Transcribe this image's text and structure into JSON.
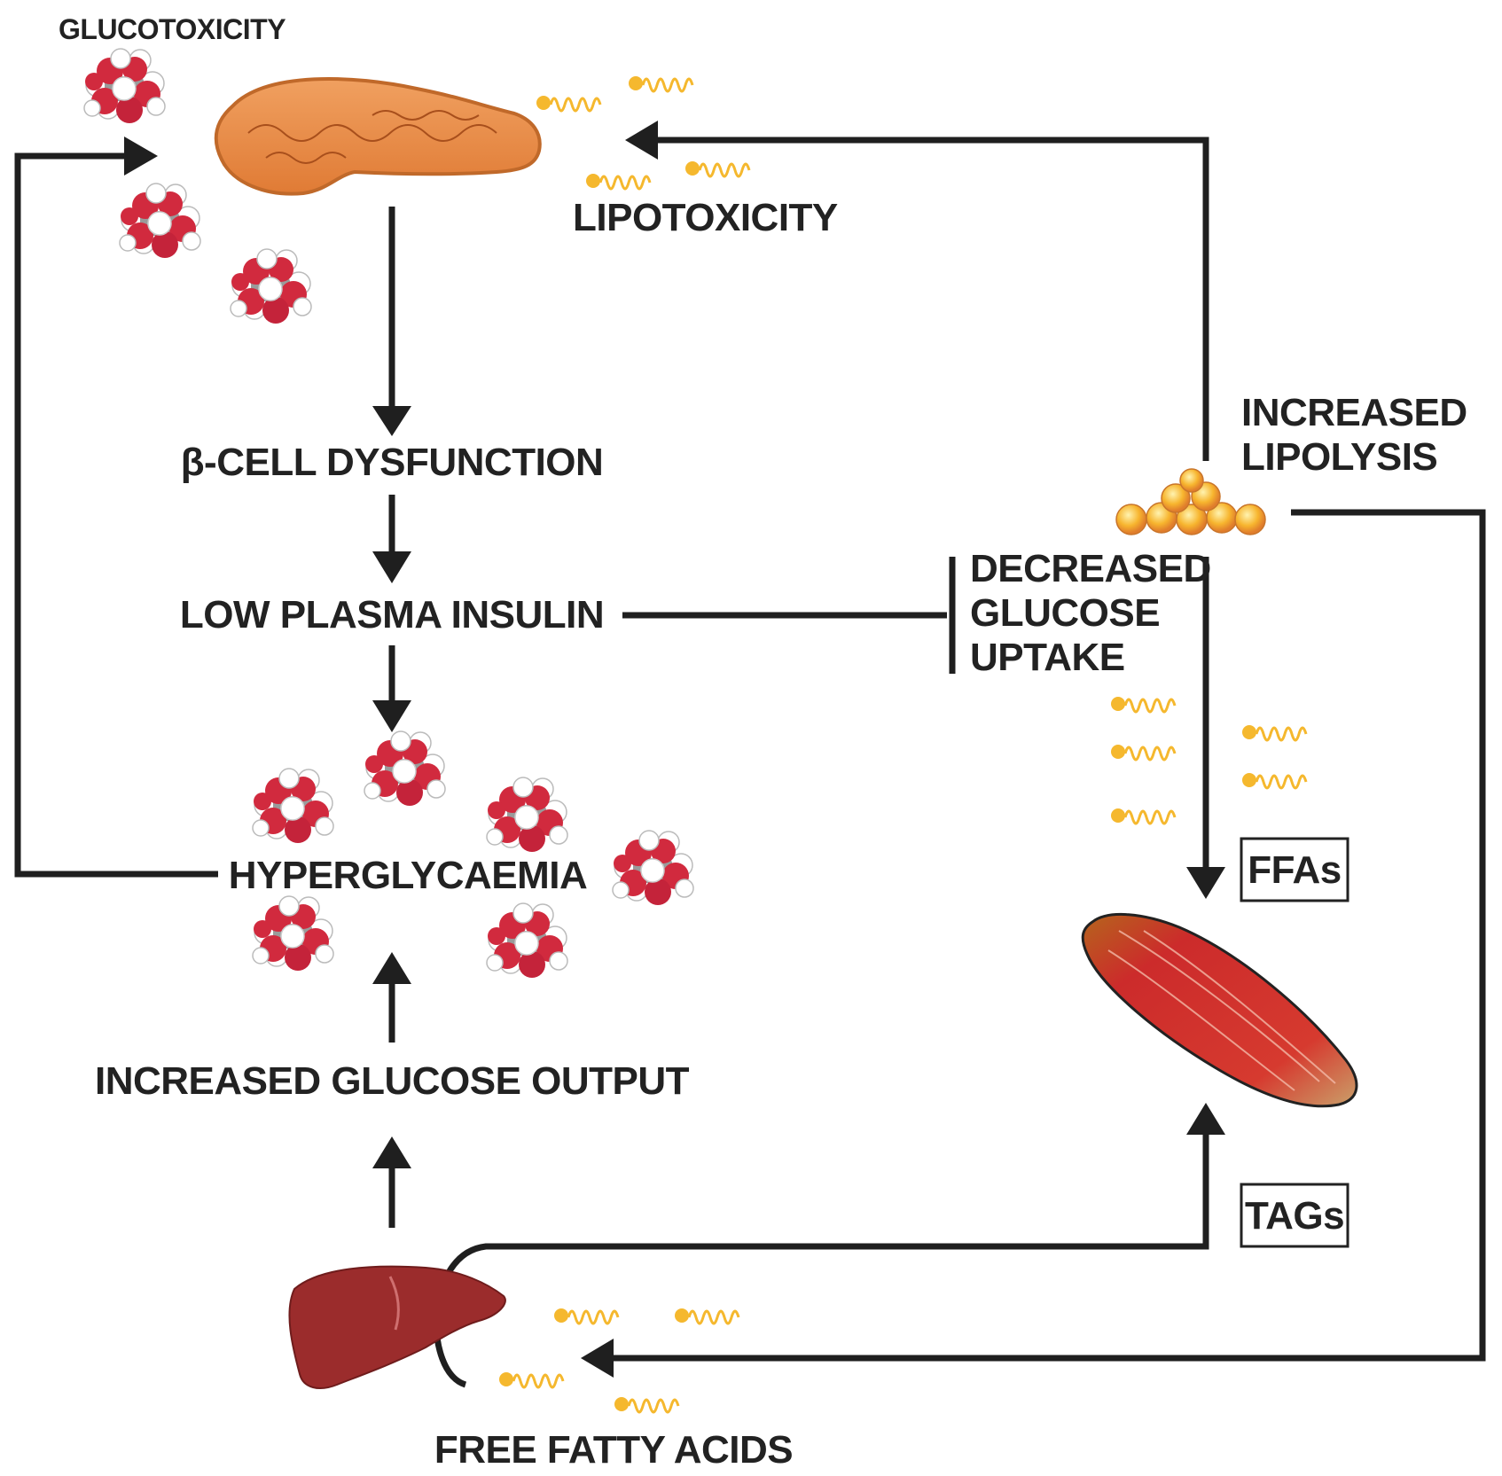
{
  "labels": {
    "glucotoxicity": "GLUCOTOXICITY",
    "lipotoxicity": "LIPOTOXICITY",
    "beta_cell": "β-CELL DYSFUNCTION",
    "low_insulin": "LOW PLASMA INSULIN",
    "hyperglycaemia": "HYPERGLYCAEMIA",
    "glucose_output": "INCREASED GLUCOSE OUTPUT",
    "free_fatty_acids": "FREE FATTY ACIDS",
    "lipolysis_line1": "INCREASED",
    "lipolysis_line2": "LIPOLYSIS",
    "uptake_line1": "DECREASED",
    "uptake_line2": "GLUCOSE",
    "uptake_line3": "UPTAKE",
    "ffas": "FFAs",
    "tags": "TAGs"
  },
  "colors": {
    "line": "#1f1f1f",
    "text": "#222222",
    "glucose_red": "#d12a3e",
    "fatty_acid_yellow": "#f5b82e",
    "pancreas_orange": "#e88a3c",
    "liver_brown": "#9b2c2c",
    "muscle_red": "#cc2b2b"
  },
  "icons": {
    "organ_top": "pancreas-icon",
    "organ_bottom": "liver-icon",
    "organ_right": "muscle-icon",
    "adipose": "fat-droplets-icon",
    "molecule": "glucose-molecule-icon",
    "fatty_acid": "fatty-acid-chain-icon"
  }
}
